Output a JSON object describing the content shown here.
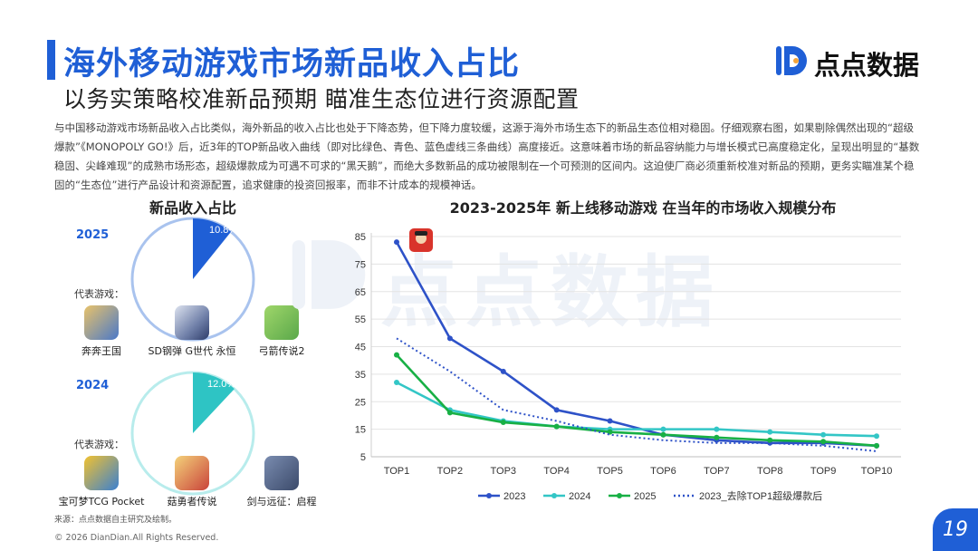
{
  "header": {
    "title": "海外移动游戏市场新品收入占比",
    "subtitle": "以务实策略校准新品预期 瞄准生态位进行资源配置",
    "logo_text": "点点数据",
    "brand_color": "#1f5fd6"
  },
  "intro": "与中国移动游戏市场新品收入占比类似，海外新品的收入占比也处于下降态势，但下降力度较缓，这源于海外市场生态下的新品生态位相对稳固。仔细观察右图，如果剔除偶然出现的“超级爆款”《MONOPOLY GO!》后，近3年的TOP新品收入曲线（即对比绿色、青色、蓝色虚线三条曲线）高度接近。这意味着市场的新品容纳能力与增长模式已高度稳定化，呈现出明显的“基数稳固、尖峰难现”的成熟市场形态，超级爆款成为可遇不可求的“黑天鹅”，而绝大多数新品的成功被限制在一个可预测的区间内。这迫使厂商必须重新校准对新品的预期，更务实瞄准某个稳固的“生态位”进行产品设计和资源配置，追求健康的投资回报率，而非不计成本的规模神话。",
  "pie_section": {
    "title": "新品收入占比",
    "representative_label": "代表游戏：",
    "years": [
      {
        "year": "2025",
        "share_label": "10.8%",
        "share_value": 10.8,
        "color": "#1f5fd6",
        "games": [
          {
            "name": "奔奔王国",
            "icon": "king-warrior-icon",
            "color": "#4a78c8"
          },
          {
            "name": "SD钢弹 G世代 永恒",
            "icon": "gundam-icon",
            "color": "#6f7fa8"
          },
          {
            "name": "弓箭传说2",
            "icon": "archer-icon",
            "color": "#5aa84a"
          }
        ]
      },
      {
        "year": "2024",
        "share_label": "12.0%",
        "share_value": 12.0,
        "color": "#2ec4c4",
        "games": [
          {
            "name": "宝可梦TCG Pocket",
            "icon": "pokemon-card-icon",
            "color": "#f2c230"
          },
          {
            "name": "菇勇者传说",
            "icon": "mushroom-hero-icon",
            "color": "#c9433a"
          },
          {
            "name": "剑与远征：启程",
            "icon": "afk-journey-icon",
            "color": "#3b4a6a"
          }
        ]
      }
    ]
  },
  "chart_data": {
    "type": "line",
    "title": "2023-2025年 新上线移动游戏 在当年的市场收入规模分布",
    "categories": [
      "TOP1",
      "TOP2",
      "TOP3",
      "TOP4",
      "TOP5",
      "TOP6",
      "TOP7",
      "TOP8",
      "TOP9",
      "TOP10"
    ],
    "ylim": [
      5,
      85
    ],
    "yticks": [
      5,
      15,
      25,
      35,
      45,
      55,
      65,
      75,
      85
    ],
    "grid": "horizontal",
    "legend_position": "bottom",
    "annotation": "monopoly-go-icon at TOP1 of 2023",
    "series": [
      {
        "name": "2023",
        "color": "#2e52c8",
        "style": "solid-marker",
        "values": [
          83,
          48,
          36,
          22,
          18,
          13,
          11,
          10,
          10,
          9
        ]
      },
      {
        "name": "2024",
        "color": "#33c6c6",
        "style": "solid-marker",
        "values": [
          32,
          22,
          18,
          16,
          15,
          15,
          15,
          14,
          13,
          12.5
        ]
      },
      {
        "name": "2025",
        "color": "#18b045",
        "style": "solid-marker",
        "values": [
          42,
          21,
          17.5,
          16,
          14,
          13,
          12,
          11,
          10.5,
          9
        ]
      },
      {
        "name": "2023_去除TOP1超级爆款后",
        "color": "#2e52c8",
        "style": "dotted",
        "values": [
          48,
          36,
          22,
          18,
          13,
          11,
          10,
          10,
          9,
          7
        ]
      }
    ]
  },
  "footer": {
    "source": "来源：点点数据自主研究及绘制。",
    "copyright": "© 2026 DianDian.All Rights Reserved.",
    "page_number": "19"
  }
}
